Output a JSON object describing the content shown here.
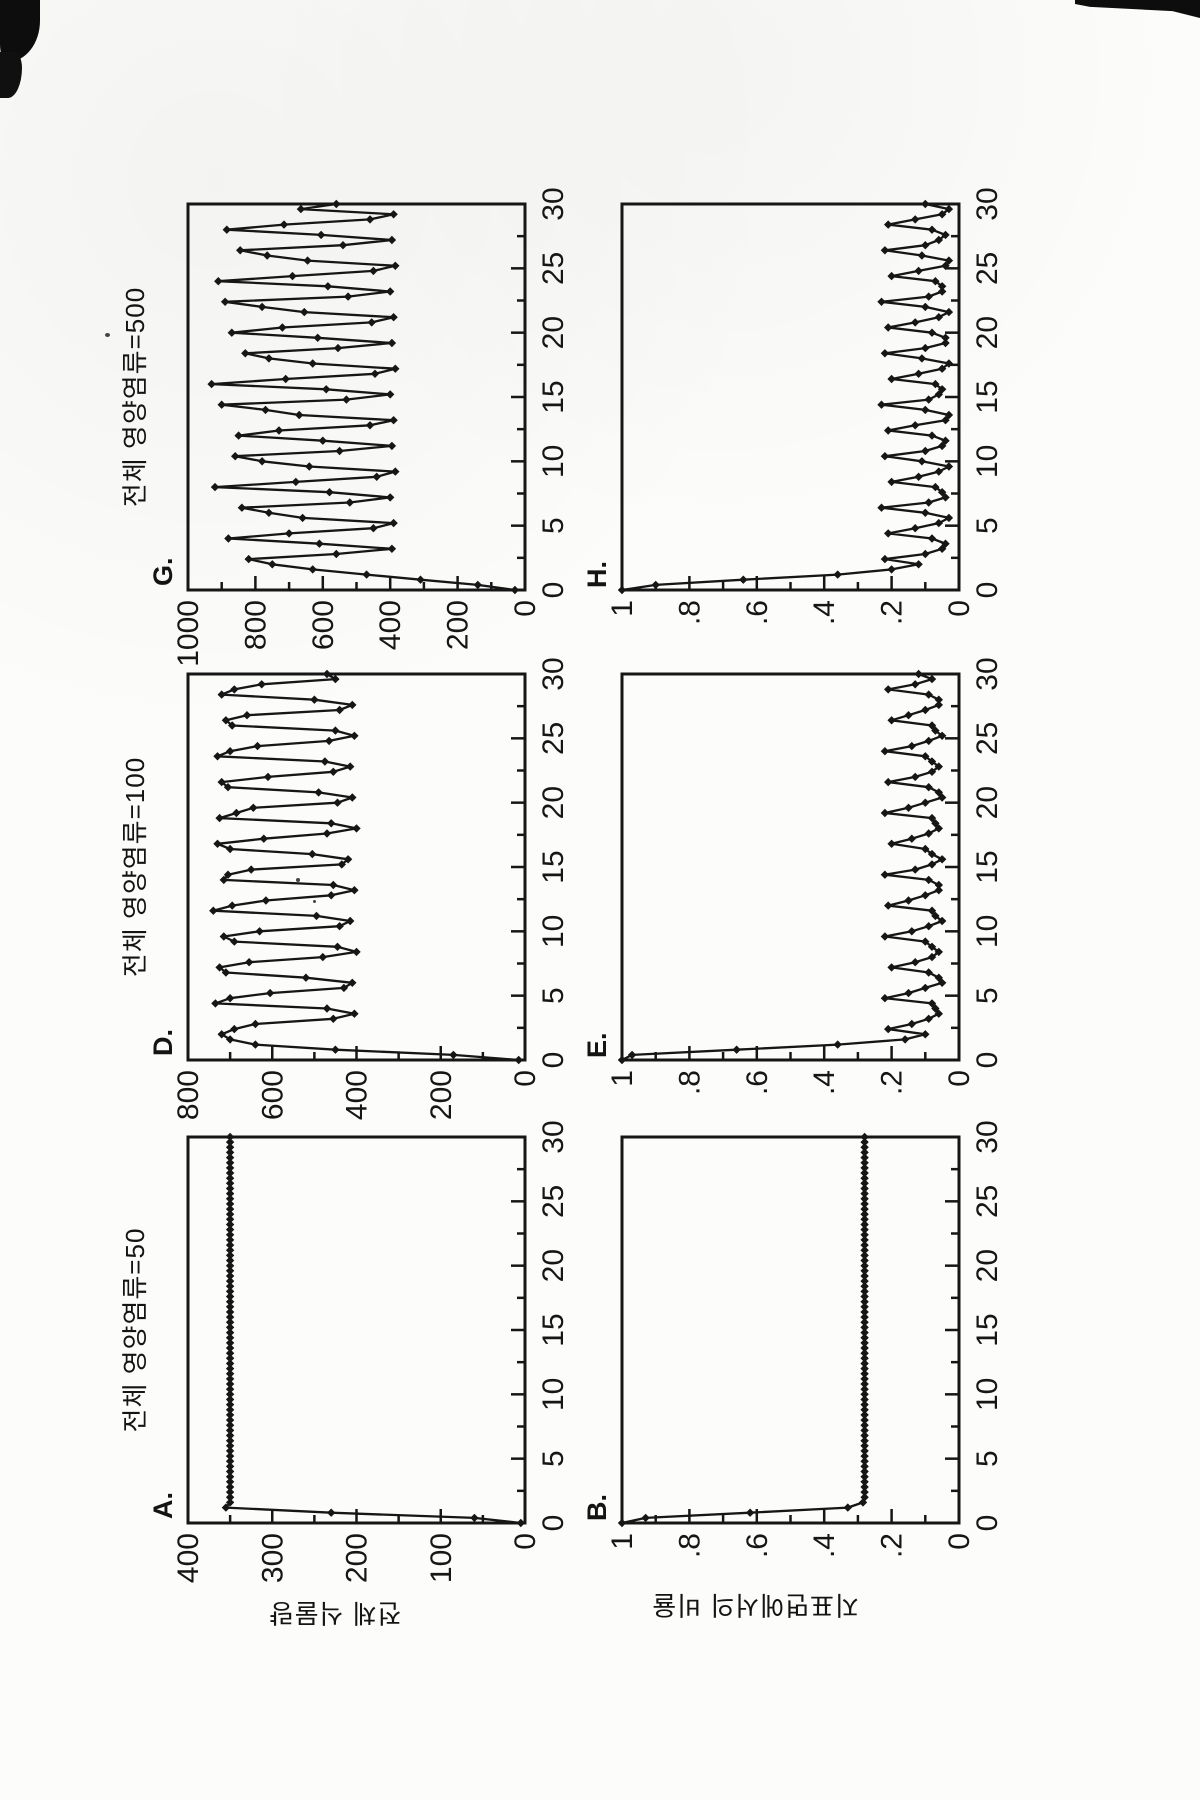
{
  "figure": {
    "column_titles": [
      "전체 영양염류=50",
      "전체 영양염류=100",
      "전체 영양염류=500"
    ],
    "row_axis_titles": [
      "전체 식물량",
      "지표면에서의 비율"
    ],
    "ink_color": "#161616",
    "x_axis": {
      "range": [
        0,
        30
      ],
      "major_ticks": [
        0,
        5,
        10,
        15,
        20,
        25,
        30
      ],
      "minor_step": 2.5
    }
  },
  "chart_data": [
    {
      "panel": "A.",
      "type": "line",
      "col": 0,
      "row": 0,
      "ylabel": "전체 식물량",
      "xlim": [
        0,
        30
      ],
      "ylim": [
        0,
        400
      ],
      "xticks": [
        0,
        5,
        10,
        15,
        20,
        25,
        30
      ],
      "ytick_values": [
        0,
        100,
        200,
        300,
        400
      ],
      "ytick_labels": [
        "0",
        "100",
        "200",
        "300",
        "400"
      ],
      "y_minor_step": 50,
      "x_start": 0,
      "x_step": 0.4,
      "values": [
        5,
        60,
        230,
        355,
        350,
        350,
        350,
        350,
        350,
        350,
        350,
        350,
        350,
        350,
        350,
        350,
        350,
        350,
        350,
        350,
        350,
        350,
        350,
        350,
        350,
        350,
        350,
        350,
        350,
        350,
        350,
        350,
        350,
        350,
        350,
        350,
        350,
        350,
        350,
        350,
        350,
        350,
        350,
        350,
        350,
        350,
        350,
        350,
        350,
        350,
        350,
        350,
        350,
        350,
        350,
        350,
        350,
        350,
        350,
        350,
        350,
        350,
        350,
        350,
        350,
        350,
        350,
        350,
        350,
        350,
        350,
        350,
        350,
        350,
        350,
        350
      ]
    },
    {
      "panel": "D.",
      "type": "line",
      "col": 1,
      "row": 0,
      "ylabel": "전체 식물량",
      "xlim": [
        0,
        30
      ],
      "ylim": [
        0,
        800
      ],
      "xticks": [
        0,
        5,
        10,
        15,
        20,
        25,
        30
      ],
      "ytick_values": [
        0,
        200,
        400,
        600,
        800
      ],
      "ytick_labels": [
        "0",
        "200",
        "400",
        "600",
        "800"
      ],
      "y_minor_step": 100,
      "x_start": 0,
      "x_step": 0.4,
      "values": [
        15,
        170,
        450,
        640,
        700,
        720,
        690,
        640,
        455,
        405,
        470,
        735,
        700,
        605,
        430,
        410,
        520,
        710,
        725,
        655,
        480,
        400,
        445,
        690,
        715,
        630,
        440,
        415,
        495,
        740,
        695,
        615,
        460,
        405,
        455,
        715,
        705,
        650,
        435,
        420,
        505,
        700,
        730,
        620,
        470,
        400,
        460,
        725,
        685,
        645,
        445,
        410,
        490,
        705,
        720,
        610,
        455,
        415,
        475,
        730,
        700,
        635,
        465,
        405,
        450,
        695,
        710,
        660,
        440,
        410,
        500,
        720,
        690,
        625,
        450,
        470
      ]
    },
    {
      "panel": "G.",
      "type": "line",
      "col": 2,
      "row": 0,
      "ylabel": "전체 식물량",
      "xlim": [
        0,
        30
      ],
      "ylim": [
        0,
        1000
      ],
      "xticks": [
        0,
        5,
        10,
        15,
        20,
        25,
        30
      ],
      "ytick_values": [
        0,
        200,
        400,
        600,
        800,
        1000
      ],
      "ytick_labels": [
        "0",
        "200",
        "400",
        "600",
        "800",
        "1000"
      ],
      "y_minor_step": 100,
      "x_start": 0,
      "x_step": 0.4,
      "values": [
        30,
        140,
        310,
        470,
        630,
        750,
        820,
        560,
        395,
        610,
        880,
        700,
        450,
        390,
        660,
        760,
        840,
        520,
        400,
        580,
        920,
        680,
        440,
        385,
        640,
        780,
        860,
        550,
        395,
        600,
        850,
        730,
        460,
        390,
        670,
        770,
        900,
        530,
        400,
        590,
        930,
        710,
        445,
        385,
        630,
        760,
        830,
        555,
        395,
        615,
        870,
        720,
        455,
        390,
        655,
        780,
        890,
        525,
        400,
        585,
        910,
        690,
        450,
        385,
        645,
        765,
        845,
        540,
        395,
        605,
        885,
        715,
        460,
        390,
        665,
        560
      ]
    },
    {
      "panel": "B.",
      "type": "line",
      "col": 0,
      "row": 1,
      "ylabel": "지표면에서의 비율",
      "xlim": [
        0,
        30
      ],
      "ylim": [
        0,
        1
      ],
      "xticks": [
        0,
        5,
        10,
        15,
        20,
        25,
        30
      ],
      "ytick_values": [
        0,
        0.2,
        0.4,
        0.6,
        0.8,
        1
      ],
      "ytick_labels": [
        "0",
        ".2",
        ".4",
        ".6",
        ".8",
        "1"
      ],
      "y_minor_step": 0.1,
      "x_start": 0,
      "x_step": 0.4,
      "values": [
        1,
        0.93,
        0.62,
        0.33,
        0.285,
        0.28,
        0.28,
        0.28,
        0.28,
        0.28,
        0.28,
        0.28,
        0.28,
        0.28,
        0.28,
        0.28,
        0.28,
        0.28,
        0.28,
        0.28,
        0.28,
        0.28,
        0.28,
        0.28,
        0.28,
        0.28,
        0.28,
        0.28,
        0.28,
        0.28,
        0.28,
        0.28,
        0.28,
        0.28,
        0.28,
        0.28,
        0.28,
        0.28,
        0.28,
        0.28,
        0.28,
        0.28,
        0.28,
        0.28,
        0.28,
        0.28,
        0.28,
        0.28,
        0.28,
        0.28,
        0.28,
        0.28,
        0.28,
        0.28,
        0.28,
        0.28,
        0.28,
        0.28,
        0.28,
        0.28,
        0.28,
        0.28,
        0.28,
        0.28,
        0.28,
        0.28,
        0.28,
        0.28,
        0.28,
        0.28,
        0.28,
        0.28,
        0.28,
        0.28,
        0.28,
        0.28
      ]
    },
    {
      "panel": "E.",
      "type": "line",
      "col": 1,
      "row": 1,
      "ylabel": "지표면에서의 비율",
      "xlim": [
        0,
        30
      ],
      "ylim": [
        0,
        1
      ],
      "xticks": [
        0,
        5,
        10,
        15,
        20,
        25,
        30
      ],
      "ytick_values": [
        0,
        0.2,
        0.4,
        0.6,
        0.8,
        1
      ],
      "ytick_labels": [
        "0",
        ".2",
        ".4",
        ".6",
        ".8",
        "1"
      ],
      "y_minor_step": 0.1,
      "x_start": 0,
      "x_step": 0.4,
      "values": [
        1,
        0.97,
        0.66,
        0.36,
        0.16,
        0.1,
        0.21,
        0.14,
        0.09,
        0.06,
        0.07,
        0.08,
        0.22,
        0.15,
        0.1,
        0.05,
        0.06,
        0.09,
        0.2,
        0.13,
        0.08,
        0.06,
        0.08,
        0.1,
        0.22,
        0.14,
        0.09,
        0.05,
        0.07,
        0.08,
        0.21,
        0.15,
        0.1,
        0.06,
        0.06,
        0.09,
        0.22,
        0.13,
        0.08,
        0.05,
        0.08,
        0.1,
        0.2,
        0.14,
        0.09,
        0.06,
        0.07,
        0.08,
        0.22,
        0.15,
        0.1,
        0.05,
        0.06,
        0.09,
        0.21,
        0.13,
        0.08,
        0.06,
        0.08,
        0.1,
        0.22,
        0.14,
        0.09,
        0.05,
        0.07,
        0.08,
        0.2,
        0.15,
        0.1,
        0.06,
        0.06,
        0.09,
        0.21,
        0.13,
        0.08,
        0.12
      ]
    },
    {
      "panel": "H.",
      "type": "line",
      "col": 2,
      "row": 1,
      "ylabel": "지표면에서의 비율",
      "xlim": [
        0,
        30
      ],
      "ylim": [
        0,
        1
      ],
      "xticks": [
        0,
        5,
        10,
        15,
        20,
        25,
        30
      ],
      "ytick_values": [
        0,
        0.2,
        0.4,
        0.6,
        0.8,
        1
      ],
      "ytick_labels": [
        "0",
        ".2",
        ".4",
        ".6",
        ".8",
        "1"
      ],
      "y_minor_step": 0.1,
      "x_start": 0,
      "x_step": 0.4,
      "values": [
        1,
        0.9,
        0.64,
        0.36,
        0.2,
        0.12,
        0.22,
        0.1,
        0.05,
        0.04,
        0.08,
        0.21,
        0.13,
        0.06,
        0.03,
        0.1,
        0.23,
        0.09,
        0.04,
        0.05,
        0.07,
        0.2,
        0.12,
        0.06,
        0.03,
        0.11,
        0.22,
        0.1,
        0.05,
        0.04,
        0.08,
        0.21,
        0.13,
        0.04,
        0.03,
        0.1,
        0.23,
        0.09,
        0.06,
        0.05,
        0.07,
        0.2,
        0.12,
        0.05,
        0.03,
        0.11,
        0.22,
        0.1,
        0.04,
        0.04,
        0.08,
        0.21,
        0.13,
        0.06,
        0.03,
        0.1,
        0.23,
        0.09,
        0.05,
        0.05,
        0.07,
        0.2,
        0.12,
        0.04,
        0.03,
        0.11,
        0.22,
        0.1,
        0.06,
        0.04,
        0.08,
        0.21,
        0.13,
        0.05,
        0.03,
        0.1
      ]
    }
  ]
}
